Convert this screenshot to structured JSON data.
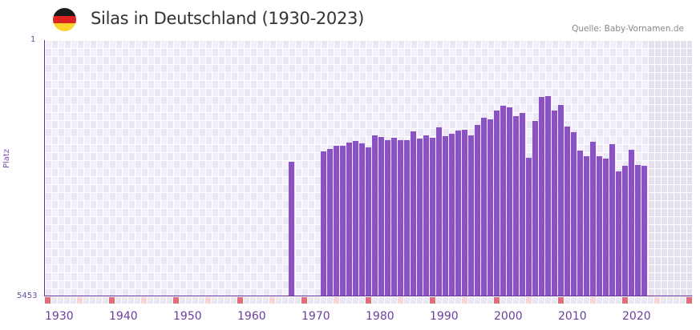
{
  "header": {
    "title": "Silas in Deutschland (1930-2023)",
    "source": "Quelle: Baby-Vornamen.de",
    "flag_colors": [
      "#1a1a1a",
      "#dd2222",
      "#ffd42a"
    ]
  },
  "axis": {
    "y_top_label": "1",
    "y_bottom_label": "5453",
    "y_title": "Platz",
    "x_ticks": [
      "1930",
      "1940",
      "1950",
      "1960",
      "1970",
      "1980",
      "1990",
      "2000",
      "2010",
      "2020"
    ]
  },
  "colors": {
    "bar": "#8a52c4",
    "axis": "#6b2fa0",
    "grid_light": "#f3f0fb",
    "grid_dark": "#ece7f7",
    "future_region": "#e4e0ee",
    "decade_marker": "#e07078",
    "half_decade_marker": "#f5d5dc"
  },
  "chart_data": {
    "type": "bar",
    "title": "Silas in Deutschland (1930-2023)",
    "xlabel": "",
    "ylabel": "Platz",
    "ylim": [
      5453,
      1
    ],
    "y_inverted": true,
    "grid": true,
    "legend": null,
    "x_range": [
      1930,
      2023
    ],
    "categories": [
      1968,
      1973,
      1974,
      1975,
      1976,
      1977,
      1978,
      1979,
      1980,
      1981,
      1982,
      1983,
      1984,
      1985,
      1986,
      1987,
      1988,
      1989,
      1990,
      1991,
      1992,
      1993,
      1994,
      1995,
      1996,
      1997,
      1998,
      1999,
      2000,
      2001,
      2002,
      2003,
      2004,
      2005,
      2006,
      2007,
      2008,
      2009,
      2010,
      2011,
      2012,
      2013,
      2014,
      2015,
      2016,
      2017,
      2018,
      2019,
      2020,
      2021,
      2022,
      2023
    ],
    "values": [
      2590,
      2370,
      2320,
      2250,
      2250,
      2180,
      2150,
      2200,
      2290,
      2030,
      2060,
      2130,
      2080,
      2130,
      2130,
      1940,
      2100,
      2030,
      2080,
      1860,
      2040,
      1990,
      1920,
      1910,
      2030,
      1810,
      1650,
      1690,
      1500,
      1400,
      1430,
      1620,
      1550,
      2500,
      1720,
      1210,
      1190,
      1500,
      1380,
      1840,
      1960,
      2350,
      2470,
      2160,
      2470,
      2520,
      2220,
      2800,
      2680,
      2330,
      2660,
      2680
    ]
  }
}
